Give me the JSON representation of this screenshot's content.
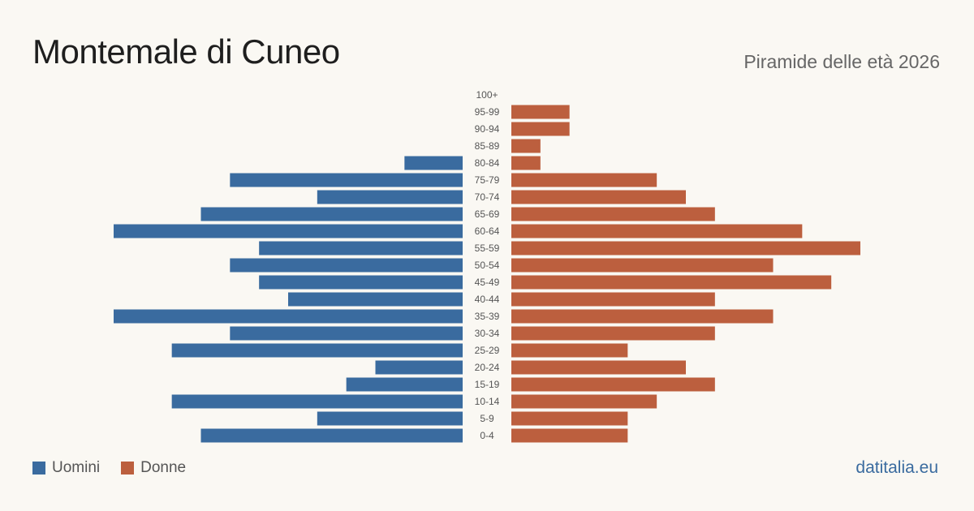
{
  "header": {
    "title": "Montemale di Cuneo",
    "subtitle": "Piramide delle età 2026"
  },
  "legend": {
    "male_label": "Uomini",
    "female_label": "Donne"
  },
  "footer": {
    "source": "datitalia.eu"
  },
  "colors": {
    "male": "#3a6b9f",
    "female": "#bc5f3e",
    "background": "#faf8f3"
  },
  "chart_data": {
    "type": "bar",
    "orientation": "horizontal-pyramid",
    "title": "Montemale di Cuneo",
    "subtitle": "Piramide delle età 2026",
    "categories": [
      "100+",
      "95-99",
      "90-94",
      "85-89",
      "80-84",
      "75-79",
      "70-74",
      "65-69",
      "60-64",
      "55-59",
      "50-54",
      "45-49",
      "40-44",
      "35-39",
      "30-34",
      "25-29",
      "20-24",
      "15-19",
      "10-14",
      "5-9",
      "0-4"
    ],
    "series": [
      {
        "name": "Uomini",
        "values": [
          0,
          0,
          0,
          0,
          2,
          8,
          5,
          9,
          12,
          7,
          8,
          7,
          6,
          12,
          8,
          10,
          3,
          4,
          10,
          5,
          9
        ]
      },
      {
        "name": "Donne",
        "values": [
          0,
          2,
          2,
          1,
          1,
          5,
          6,
          7,
          10,
          12,
          9,
          11,
          7,
          9,
          7,
          4,
          6,
          7,
          5,
          4,
          4
        ]
      }
    ],
    "xlim": [
      0,
      12
    ],
    "grid": false,
    "legend_position": "bottom-left"
  }
}
